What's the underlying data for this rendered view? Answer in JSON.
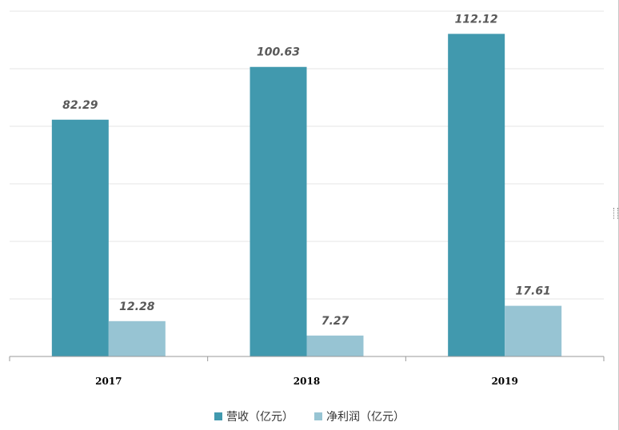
{
  "chart_data": {
    "type": "bar",
    "categories": [
      "2017",
      "2018",
      "2019"
    ],
    "series": [
      {
        "name": "营收（亿元）",
        "values": [
          82.29,
          100.63,
          112.12
        ],
        "color": "#4199ae"
      },
      {
        "name": "净利润（亿元）",
        "values": [
          12.28,
          7.27,
          17.61
        ],
        "color": "#97c4d3"
      }
    ],
    "value_labels": {
      "营收（亿元）": [
        "82.29",
        "100.63",
        "112.12"
      ],
      "净利润（亿元）": [
        "12.28",
        "7.27",
        "17.61"
      ]
    },
    "ylim": [
      0,
      120
    ],
    "grid": true,
    "legend_position": "bottom",
    "title": "",
    "xlabel": "",
    "ylabel": ""
  },
  "legend": {
    "items": [
      {
        "label": "营收（亿元）"
      },
      {
        "label": "净利润（亿元）"
      }
    ]
  }
}
